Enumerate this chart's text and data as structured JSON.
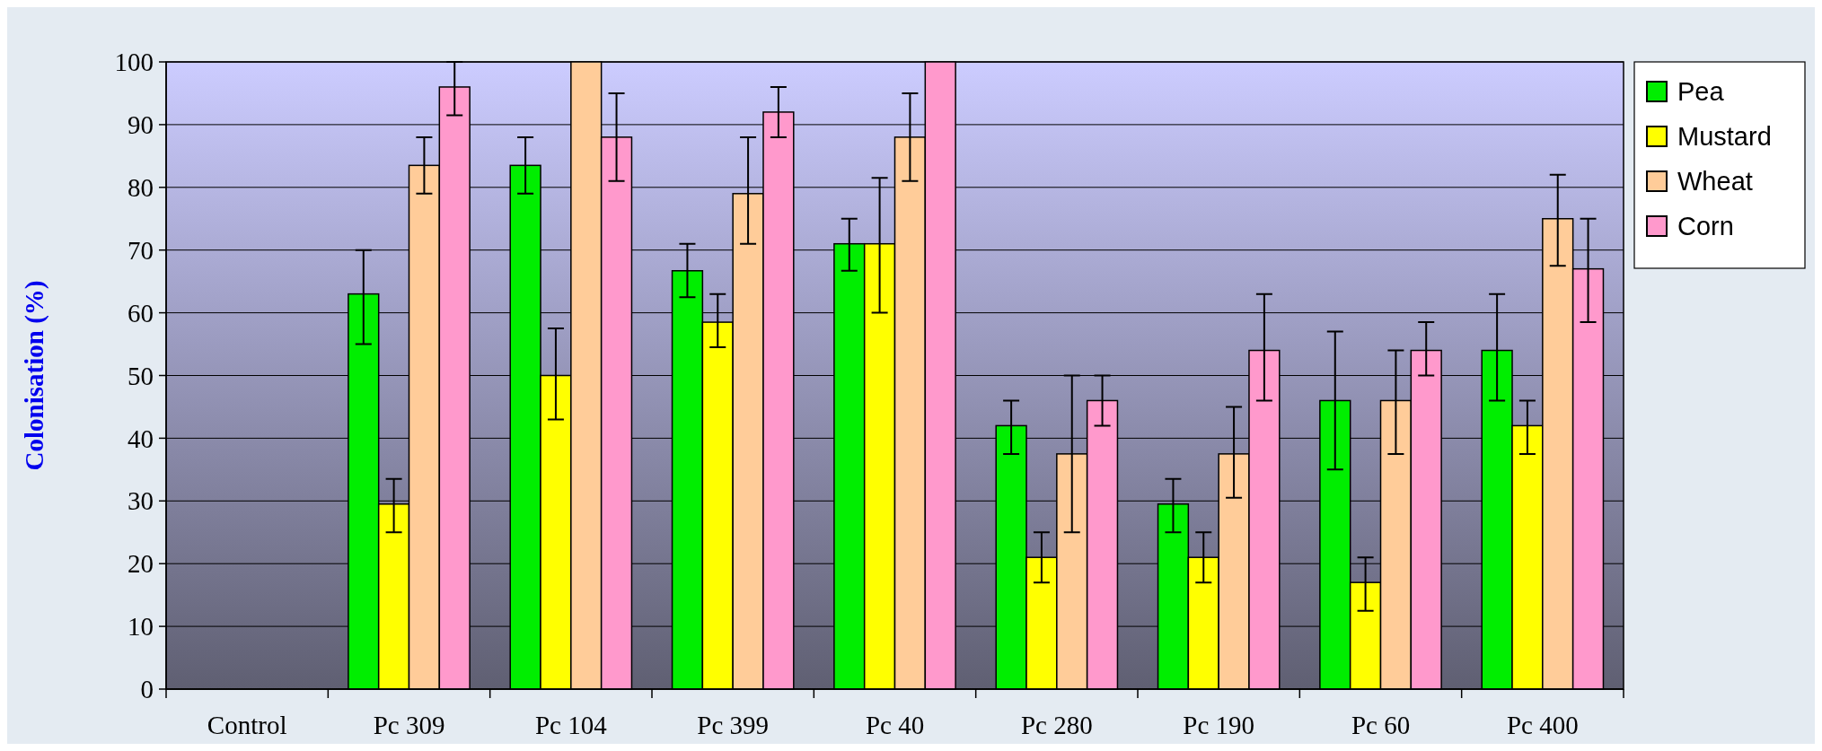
{
  "chart_data": {
    "type": "bar",
    "ylabel": "Colonisation (%)",
    "categories": [
      "Control",
      "Pc 309",
      "Pc 104",
      "Pc 399",
      "Pc 40",
      "Pc 280",
      "Pc 190",
      "Pc 60",
      "Pc 400"
    ],
    "series": [
      {
        "name": "Pea",
        "color": "#00ee00",
        "values": [
          0,
          63,
          83.5,
          66.7,
          71,
          42,
          29.5,
          46,
          54
        ],
        "errors": [
          null,
          [
            55,
            70
          ],
          [
            79,
            88
          ],
          [
            62.5,
            71
          ],
          [
            66.7,
            75
          ],
          [
            37.5,
            46
          ],
          [
            25,
            33.5
          ],
          [
            35,
            57
          ],
          [
            46,
            63
          ]
        ]
      },
      {
        "name": "Mustard",
        "color": "#ffff00",
        "values": [
          0,
          29.5,
          50,
          58.5,
          71,
          21,
          21,
          17,
          42
        ],
        "errors": [
          null,
          [
            25,
            33.5
          ],
          [
            43,
            57.5
          ],
          [
            54.5,
            63
          ],
          [
            60,
            81.5
          ],
          [
            17,
            25
          ],
          [
            17,
            25
          ],
          [
            12.5,
            21
          ],
          [
            37.5,
            46
          ]
        ]
      },
      {
        "name": "Wheat",
        "color": "#ffcc99",
        "values": [
          0,
          83.5,
          100,
          79,
          88,
          37.5,
          37.5,
          46,
          75
        ],
        "errors": [
          null,
          [
            79,
            88
          ],
          null,
          [
            71,
            88
          ],
          [
            81,
            95
          ],
          [
            25,
            50
          ],
          [
            30.5,
            45
          ],
          [
            37.5,
            54
          ],
          [
            67.5,
            82
          ]
        ]
      },
      {
        "name": "Corn",
        "color": "#ff99cc",
        "values": [
          0,
          96,
          88,
          92,
          100,
          46,
          54,
          54,
          67
        ],
        "errors": [
          null,
          [
            91.5,
            100
          ],
          [
            81,
            95
          ],
          [
            88,
            96
          ],
          null,
          [
            42,
            50
          ],
          [
            46,
            63
          ],
          [
            50,
            58.5
          ],
          [
            58.5,
            75
          ]
        ]
      }
    ],
    "ylim": [
      0,
      100
    ],
    "yticks": [
      0,
      10,
      20,
      30,
      40,
      50,
      60,
      70,
      80,
      90,
      100
    ],
    "grid": "y",
    "legend": "right"
  }
}
